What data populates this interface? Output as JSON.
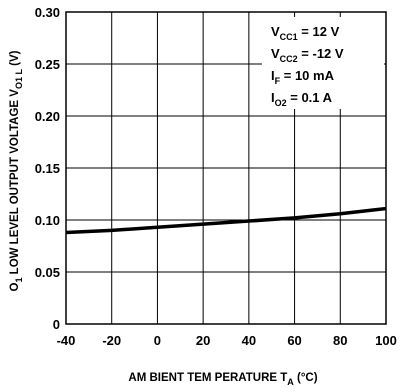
{
  "chart_data": {
    "type": "line",
    "xlabel": {
      "main": "AM BIENT TEM PERATURE T",
      "sub": "A",
      "tail": " (°C)"
    },
    "ylabel": {
      "pre": "O",
      "pre_sub": "1",
      "main": " LOW LEVEL OUTPUT VOLTAGE V",
      "sub": "O1 L",
      "tail": " (V)"
    },
    "x": [
      -40,
      -20,
      0,
      20,
      40,
      60,
      80,
      100
    ],
    "series": [
      {
        "values": [
          0.088,
          0.09,
          0.093,
          0.096,
          0.099,
          0.102,
          0.106,
          0.111
        ]
      }
    ],
    "xlim": [
      -40,
      100
    ],
    "ylim": [
      0,
      0.3
    ],
    "xticks": [
      "-40",
      "-20",
      "0",
      "20",
      "40",
      "60",
      "80",
      "100"
    ],
    "yticks": [
      "0",
      "0.05",
      "0.10",
      "0.15",
      "0.20",
      "0.25",
      "0.30"
    ],
    "grid": true,
    "annotations": [
      {
        "main": "V",
        "sub": "CC1",
        "tail": " =  12 V"
      },
      {
        "main": "V",
        "sub": "CC2",
        "tail": " =  -12 V"
      },
      {
        "main": "I",
        "sub": "F",
        "tail": " =  10 mA"
      },
      {
        "main": "I",
        "sub": "O2",
        "tail": " =  0.1 A"
      }
    ]
  }
}
